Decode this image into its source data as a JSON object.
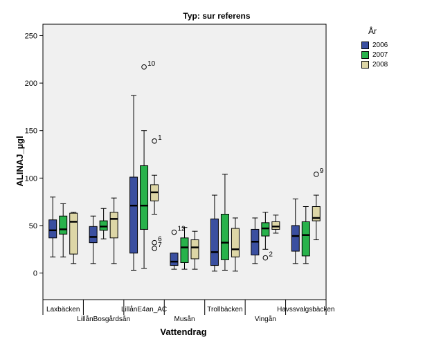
{
  "chart_data": {
    "type": "boxplot",
    "title": "Typ: sur referens",
    "xlabel": "Vattendrag",
    "ylabel": "ALINAJ_µgl",
    "ylim": [
      -28,
      262
    ],
    "yticks": [
      0,
      50,
      100,
      150,
      200,
      250
    ],
    "grid": false,
    "legend": {
      "title": "År",
      "placement": "right"
    },
    "categories": [
      "Laxbäcken",
      "LillånBosgårdsån",
      "LillånE4an_AC",
      "Musån",
      "Trollbäcken",
      "Vingån",
      "Havssvalgsbäcken"
    ],
    "series": [
      {
        "name": "2006",
        "color": "#3a4fa0",
        "boxes": [
          {
            "whisker_low": 17,
            "q1": 37,
            "median": 45,
            "q3": 56,
            "whisker_high": 80,
            "outliers": []
          },
          {
            "whisker_low": 10,
            "q1": 32,
            "median": 38,
            "q3": 49,
            "whisker_high": 60,
            "outliers": []
          },
          {
            "whisker_low": 3,
            "q1": 21,
            "median": 71,
            "q3": 101,
            "whisker_high": 187,
            "outliers": []
          },
          {
            "whisker_low": 4,
            "q1": 8,
            "median": 12,
            "q3": 21,
            "whisker_high": 21,
            "outliers": [
              {
                "value": 43,
                "label": "12"
              }
            ]
          },
          {
            "whisker_low": 2,
            "q1": 8,
            "median": 22,
            "q3": 57,
            "whisker_high": 82,
            "outliers": []
          },
          {
            "whisker_low": 10,
            "q1": 19,
            "median": 33,
            "q3": 46,
            "whisker_high": 58,
            "outliers": []
          },
          {
            "whisker_low": 10,
            "q1": 23,
            "median": 39,
            "q3": 50,
            "whisker_high": 78,
            "outliers": []
          }
        ]
      },
      {
        "name": "2007",
        "color": "#28b24b",
        "boxes": [
          {
            "whisker_low": 17,
            "q1": 41,
            "median": 46,
            "q3": 60,
            "whisker_high": 73,
            "outliers": []
          },
          {
            "whisker_low": 36,
            "q1": 45,
            "median": 49,
            "q3": 55,
            "whisker_high": 68,
            "outliers": []
          },
          {
            "whisker_low": 5,
            "q1": 46,
            "median": 71,
            "q3": 113,
            "whisker_high": 150,
            "outliers": [
              {
                "value": 217,
                "label": "10"
              }
            ]
          },
          {
            "whisker_low": 4,
            "q1": 11,
            "median": 27,
            "q3": 37,
            "whisker_high": 48,
            "outliers": []
          },
          {
            "whisker_low": 3,
            "q1": 14,
            "median": 32,
            "q3": 62,
            "whisker_high": 104,
            "outliers": []
          },
          {
            "whisker_low": 25,
            "q1": 39,
            "median": 47,
            "q3": 53,
            "whisker_high": 64,
            "outliers": [
              {
                "value": 16,
                "label": "2"
              }
            ]
          },
          {
            "whisker_low": 10,
            "q1": 18,
            "median": 40,
            "q3": 54,
            "whisker_high": 70,
            "outliers": []
          }
        ]
      },
      {
        "name": "2008",
        "color": "#ddd6a6",
        "boxes": [
          {
            "whisker_low": 10,
            "q1": 20,
            "median": 54,
            "q3": 63,
            "whisker_high": 64,
            "outliers": []
          },
          {
            "whisker_low": 10,
            "q1": 37,
            "median": 57,
            "q3": 64,
            "whisker_high": 79,
            "outliers": []
          },
          {
            "whisker_low": 62,
            "q1": 76,
            "median": 85,
            "q3": 93,
            "whisker_high": 103,
            "outliers": [
              {
                "value": 139,
                "label": "1"
              },
              {
                "value": 32,
                "label": "6"
              },
              {
                "value": 26,
                "label": "7"
              }
            ]
          },
          {
            "whisker_low": 4,
            "q1": 15,
            "median": 27,
            "q3": 35,
            "whisker_high": 44,
            "outliers": []
          },
          {
            "whisker_low": 2,
            "q1": 17,
            "median": 25,
            "q3": 47,
            "whisker_high": 58,
            "outliers": []
          },
          {
            "whisker_low": 42,
            "q1": 46,
            "median": 49,
            "q3": 54,
            "whisker_high": 61,
            "outliers": []
          },
          {
            "whisker_low": 35,
            "q1": 55,
            "median": 58,
            "q3": 70,
            "whisker_high": 82,
            "outliers": [
              {
                "value": 104,
                "label": "9"
              }
            ]
          }
        ]
      }
    ]
  }
}
